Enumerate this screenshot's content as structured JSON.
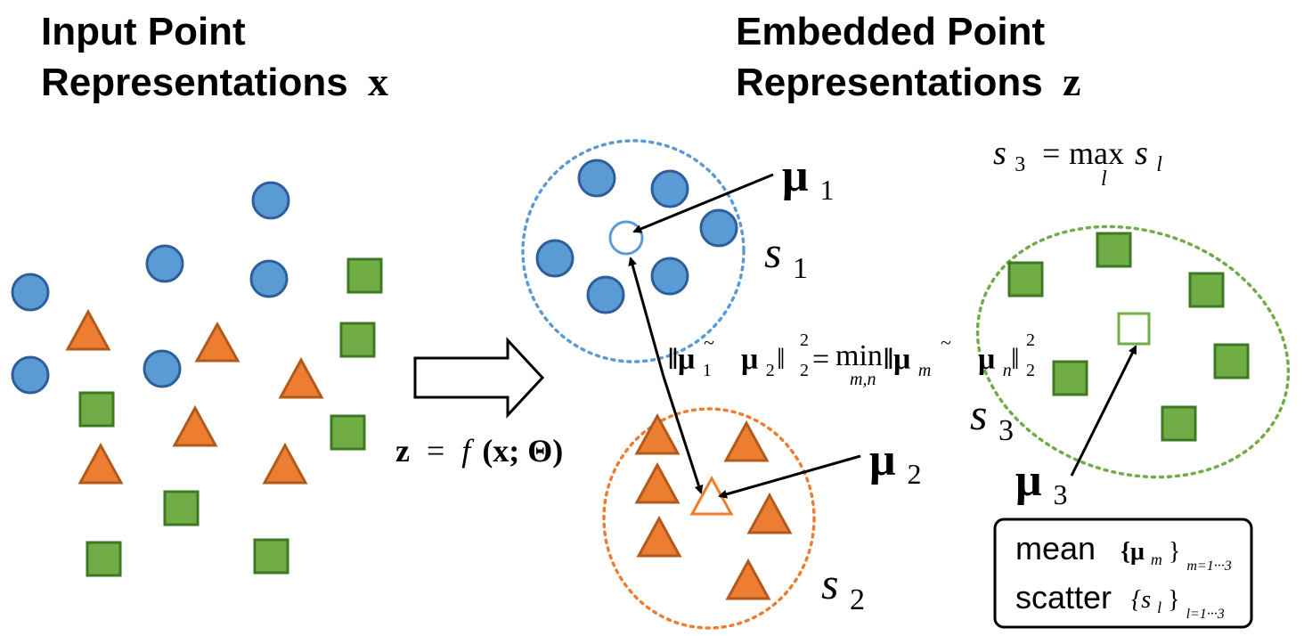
{
  "title_left": {
    "line1": "Input Point",
    "line2": "Representations",
    "var": "x"
  },
  "title_right": {
    "line1": "Embedded Point",
    "line2": "Representations",
    "var": "z"
  },
  "equation_map": {
    "z": "z",
    "equals": "=",
    "f": "f",
    "arg": "(x; Θ)"
  },
  "cluster_labels": {
    "mu1": "μ",
    "mu1_sub": "1",
    "mu2": "μ",
    "mu2_sub": "2",
    "mu3": "μ",
    "mu3_sub": "3",
    "s1": "s",
    "s1_sub": "1",
    "s2": "s",
    "s2_sub": "2",
    "s3": "s",
    "s3_sub": "3"
  },
  "max_equation": {
    "lhs": "s",
    "lhs_sub": "3",
    "eq": "=",
    "op": "max",
    "op_sub": "l",
    "rhs": "s",
    "rhs_sub": "l"
  },
  "min_equation": {
    "left_norm": "‖μ",
    "left_sub": "1",
    "tilde1": "~",
    "mid": "μ",
    "mid_sub": "2",
    "close1": "‖",
    "sq1": "2",
    "ns1": "2",
    "eq": "=",
    "op": "min",
    "op_sub": "m,n",
    "right_norm": "‖μ",
    "right_sub": "m",
    "tilde2": "~",
    "mid2": "μ",
    "mid2_sub": "n",
    "close2": "‖",
    "sq2": "2",
    "ns2": "2"
  },
  "legend_box": {
    "mean_label": "mean",
    "mean_set": "{μ",
    "mean_sub": "m",
    "mean_close": "}",
    "mean_range": "m=1···3",
    "scatter_label": "scatter",
    "scatter_set": "{s",
    "scatter_sub": "l",
    "scatter_close": "}",
    "scatter_range": "l=1···3"
  },
  "colors": {
    "blue_fill": "#5b9bd5",
    "blue_stroke": "#2e5f9a",
    "orange_fill": "#ed7d31",
    "orange_stroke": "#b05a1c",
    "green_fill": "#70ad47",
    "green_stroke": "#3d7a23",
    "blue_dotted": "#5b9bd5",
    "orange_dotted": "#ed7d31",
    "green_dotted": "#70ad47"
  }
}
